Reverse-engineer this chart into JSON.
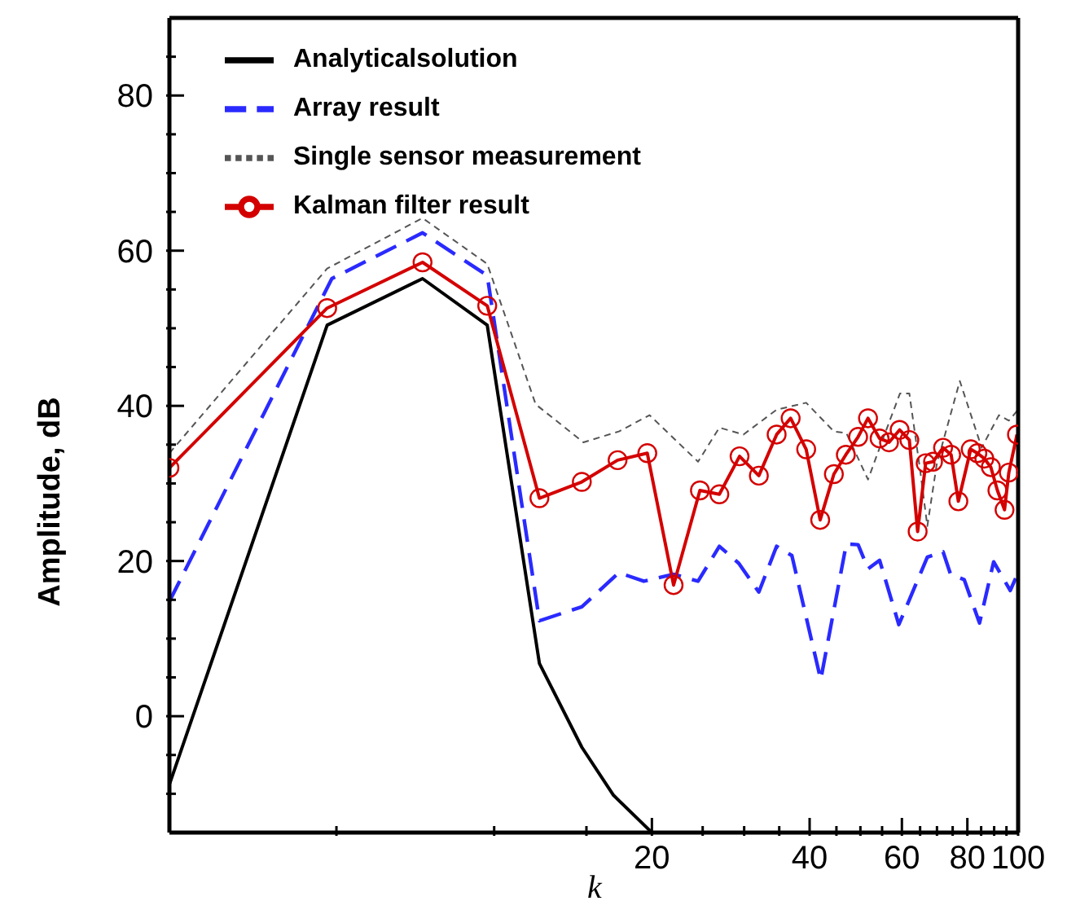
{
  "chart_data": {
    "type": "line",
    "xlabel": "k",
    "ylabel": "Amplitude, dB",
    "log": "x",
    "grid": false,
    "legend": "top",
    "xlim": [
      2.4,
      100
    ],
    "xticks": [
      {
        "value": 5,
        "label": null
      },
      {
        "value": 10,
        "label": null
      },
      {
        "value": 15,
        "label": null
      },
      20,
      {
        "value": 25,
        "label": null
      },
      {
        "value": 30,
        "label": null
      },
      {
        "value": 35,
        "label": null
      },
      40,
      {
        "value": 45,
        "label": null
      },
      {
        "value": 50,
        "label": null
      },
      {
        "value": 55,
        "label": null
      },
      60,
      {
        "value": 65,
        "label": null
      },
      {
        "value": 70,
        "label": null
      },
      {
        "value": 75,
        "label": null
      },
      80,
      {
        "value": 85,
        "label": null
      },
      {
        "value": 90,
        "label": null
      },
      {
        "value": 95,
        "label": null
      },
      100
    ],
    "ylim": [
      -15,
      90
    ],
    "yticks": [
      {
        "value": -10,
        "label": null
      },
      {
        "value": -5,
        "label": null
      },
      0,
      {
        "value": 5,
        "label": null
      },
      {
        "value": 10,
        "label": null
      },
      {
        "value": 15,
        "label": null
      },
      20,
      {
        "value": 25,
        "label": null
      },
      {
        "value": 30,
        "label": null
      },
      {
        "value": 35,
        "label": null
      },
      40,
      {
        "value": 45,
        "label": null
      },
      {
        "value": 50,
        "label": null
      },
      {
        "value": 55,
        "label": null
      },
      60,
      {
        "value": 65,
        "label": null
      },
      {
        "value": 70,
        "label": null
      },
      {
        "value": 75,
        "label": null
      },
      80,
      {
        "value": 85,
        "label": null
      }
    ],
    "series": [
      {
        "name": "Analyticalsolution",
        "color": "#000000",
        "line_style": "solid",
        "marker": "none",
        "x": [
          2.4,
          4.8,
          7.3,
          9.7,
          12.2,
          14.7,
          16.9,
          20
        ],
        "values": [
          -8.8,
          50.4,
          56.4,
          50.4,
          6.8,
          -4.0,
          -10.2,
          -15
        ]
      },
      {
        "name": "Array result",
        "color": "#2a2aff",
        "line_style": "dashed",
        "marker": "none",
        "x": [
          2.4,
          4.9,
          7.3,
          9.7,
          12.2,
          14.7,
          17.3,
          19.3,
          22.0,
          24.5,
          26.9,
          29.3,
          32.0,
          34.6,
          37.0,
          42.0,
          47.0,
          49.5,
          51.7,
          54.4,
          59.2,
          67.1,
          71.9,
          74.3,
          78.9,
          84.4,
          89.8,
          96.6,
          100
        ],
        "values": [
          14.8,
          56.4,
          62.3,
          56.8,
          12.3,
          14.1,
          18.5,
          17.4,
          18.3,
          17.4,
          21.9,
          19.7,
          16.0,
          21.9,
          20.7,
          4.7,
          22.2,
          22.1,
          19.0,
          20.1,
          11.8,
          20.5,
          21.2,
          18.3,
          17.6,
          12.0,
          19.9,
          16.2,
          18.5
        ]
      },
      {
        "name": "Single sensor measurement",
        "color": "#555555",
        "line_style": "dotted",
        "marker": "none",
        "x": [
          2.4,
          4.8,
          7.3,
          9.7,
          12.0,
          14.8,
          17.3,
          19.8,
          24.5,
          26.9,
          29.9,
          34.6,
          39.4,
          44.5,
          47.0,
          51.7,
          55.1,
          59.5,
          62.0,
          65.1,
          67.1,
          69.9,
          77.4,
          85.2,
          91.9,
          96.0,
          100
        ],
        "values": [
          33.9,
          57.7,
          64.2,
          58.3,
          40.2,
          35.3,
          36.7,
          38.8,
          32.8,
          37.2,
          36.3,
          39.5,
          40.4,
          36.7,
          36.5,
          30.5,
          35.6,
          41.6,
          41.6,
          31.4,
          24.5,
          32.4,
          43.2,
          34.6,
          38.8,
          38.1,
          39.5
        ]
      },
      {
        "name": "Kalman filter result",
        "color": "#d40000",
        "line_style": "solid",
        "marker": "circle",
        "x": [
          2.4,
          4.8,
          7.3,
          9.7,
          12.2,
          14.7,
          17.2,
          19.6,
          22.0,
          24.7,
          26.9,
          29.4,
          32.0,
          34.6,
          36.8,
          39.4,
          41.9,
          44.5,
          46.9,
          49.5,
          51.7,
          54.4,
          56.7,
          59.4,
          62.0,
          64.3,
          66.6,
          68.8,
          71.9,
          74.5,
          76.9,
          81.2,
          83.6,
          86.2,
          88.7,
          91.3,
          94.2,
          96.0,
          99.5
        ],
        "values": [
          32.0,
          52.6,
          58.5,
          52.9,
          28.1,
          30.2,
          33.0,
          33.9,
          16.9,
          29.1,
          28.6,
          33.5,
          31.0,
          36.3,
          38.4,
          34.4,
          25.3,
          31.2,
          33.7,
          36.0,
          38.4,
          35.8,
          35.3,
          36.9,
          35.6,
          23.8,
          32.6,
          32.8,
          34.6,
          33.7,
          27.7,
          34.4,
          33.9,
          33.2,
          32.1,
          29.1,
          26.6,
          31.4,
          36.3
        ]
      }
    ]
  }
}
